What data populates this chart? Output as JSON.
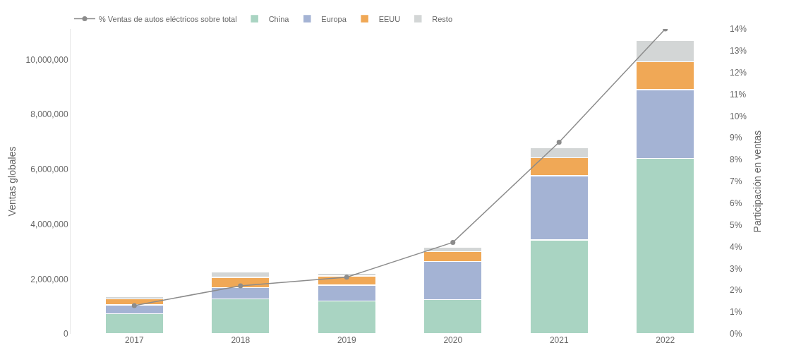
{
  "chart_data": {
    "type": "bar",
    "stacked": true,
    "ylabel": "Ventas globales",
    "y2label": "Participación en ventas",
    "categories": [
      "2017",
      "2018",
      "2019",
      "2020",
      "2021",
      "2022"
    ],
    "series": [
      {
        "name": "% Ventas de autos eléctricos sobre total",
        "type": "line",
        "axis": "y2",
        "color": "#8c8c8c",
        "marker": "circle",
        "values": [
          1.3,
          2.2,
          2.6,
          4.2,
          8.8,
          14.0
        ]
      },
      {
        "name": "China",
        "color": "#a9d4c2",
        "values": [
          730000,
          1280000,
          1200000,
          1250000,
          3420000,
          6400000
        ]
      },
      {
        "name": "Europa",
        "color": "#a4b3d4",
        "values": [
          330000,
          400000,
          580000,
          1390000,
          2350000,
          2500000
        ]
      },
      {
        "name": "EEUU",
        "color": "#f0a856",
        "values": [
          220000,
          380000,
          330000,
          360000,
          650000,
          1020000
        ]
      },
      {
        "name": "Resto",
        "color": "#d3d6d6",
        "values": [
          80000,
          190000,
          110000,
          160000,
          370000,
          780000
        ]
      }
    ],
    "ylim": [
      0,
      11120000
    ],
    "yticks": [
      0,
      {
        "value": 2000000,
        "label": "2,000,000"
      },
      {
        "value": 4000000,
        "label": "4,000,000"
      },
      {
        "value": 6000000,
        "label": "6,000,000"
      },
      {
        "value": 8000000,
        "label": "8,000,000"
      },
      {
        "value": 10000000,
        "label": "10,000,000"
      }
    ],
    "y2lim": [
      0,
      14
    ],
    "y2ticks": [
      {
        "value": 0,
        "label": "0%"
      },
      {
        "value": 1,
        "label": "1%"
      },
      {
        "value": 2,
        "label": "2%"
      },
      {
        "value": 3,
        "label": "3%"
      },
      {
        "value": 4,
        "label": "4%"
      },
      {
        "value": 5,
        "label": "5%"
      },
      {
        "value": 6,
        "label": "6%"
      },
      {
        "value": 7,
        "label": "7%"
      },
      {
        "value": 8,
        "label": "8%"
      },
      {
        "value": 9,
        "label": "9%"
      },
      {
        "value": 10,
        "label": "10%"
      },
      {
        "value": 11,
        "label": "11%"
      },
      {
        "value": 12,
        "label": "12%"
      },
      {
        "value": 13,
        "label": "13%"
      },
      {
        "value": 14,
        "label": "14%"
      }
    ],
    "legend": "top left"
  }
}
